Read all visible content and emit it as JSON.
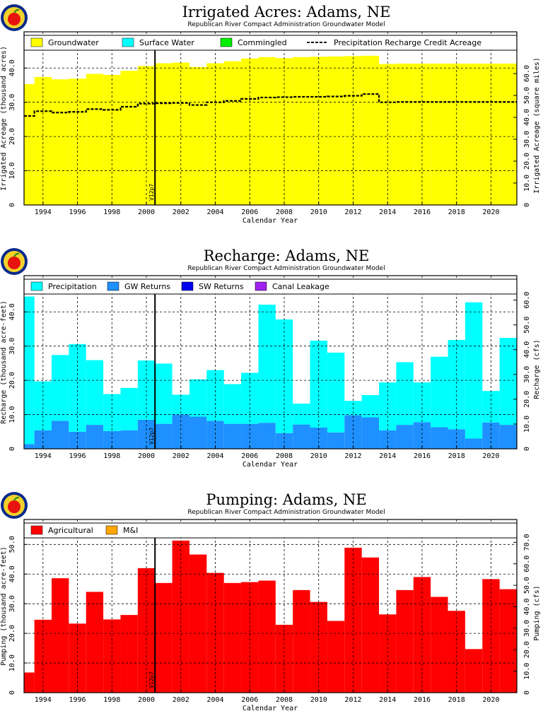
{
  "chart_data": [
    {
      "type": "area",
      "title": "Irrigated Acres: Adams, NE",
      "subtitle": "Republican River Compact Administration Groundwater Model",
      "xlabel": "Calendar Year",
      "ylabel": "Irrigated Acreage (thousand acres)",
      "y2label": "Irrigated Acreage (square miles)",
      "xlim": [
        1992.9,
        2021.5
      ],
      "ylim": [
        0,
        44.6
      ],
      "y2lim": [
        0,
        69.7
      ],
      "y2ticks": [
        "0",
        "10.0",
        "20.0",
        "30.0",
        "40.0",
        "50.0",
        "60.0"
      ],
      "grid": true,
      "legend_position": "top",
      "marker_x": 2000.5,
      "marker_label": "V12p7",
      "start_year": 1993,
      "legend": [
        {
          "name": "Groundwater",
          "color": "#ffff00",
          "style": "box"
        },
        {
          "name": "Surface Water",
          "color": "#00ffff",
          "style": "box"
        },
        {
          "name": "Commingled",
          "color": "#00ee00",
          "style": "box"
        },
        {
          "name": "Precipitation Recharge Credit Acreage",
          "color": "#000000",
          "style": "dash"
        }
      ],
      "series": [
        {
          "name": "Groundwater",
          "color": "#ffff00",
          "values": [
            35.3,
            37.4,
            36.7,
            36.9,
            38.3,
            38.0,
            39.2,
            40.6,
            41.4,
            41.6,
            40.3,
            41.4,
            42.0,
            42.8,
            43.2,
            42.9,
            43.2,
            43.3,
            43.4,
            43.5,
            43.6,
            41.2,
            41.3,
            41.3,
            41.3,
            41.3,
            41.3,
            41.3,
            41.3
          ],
          "dashed_values": [
            26.0,
            27.4,
            27.0,
            27.2,
            28.0,
            27.8,
            28.7,
            29.6,
            29.7,
            29.8,
            29.2,
            30.0,
            30.4,
            31.0,
            31.4,
            31.5,
            31.6,
            31.6,
            31.7,
            31.9,
            32.4,
            30.0,
            30.1,
            30.1,
            30.1,
            30.1,
            30.1,
            30.1,
            30.1
          ]
        }
      ]
    },
    {
      "type": "bar",
      "title": "Recharge: Adams, NE",
      "subtitle": "Republican River Compact Administration Groundwater Model",
      "xlabel": "Calendar Year",
      "ylabel": "Recharge (thousand acre-feet)",
      "y2label": "Recharge (cfs)",
      "xlim": [
        1992.9,
        2021.5
      ],
      "ylim": [
        0,
        44.6
      ],
      "y2lim": [
        0,
        61.6
      ],
      "y2ticks": [
        "0",
        "10.0",
        "20.0",
        "30.0",
        "40.0",
        "50.0",
        "60.0"
      ],
      "grid": true,
      "legend_position": "top",
      "marker_x": 2000.5,
      "marker_label": "V12p7",
      "start_year": 1993,
      "legend": [
        {
          "name": "Precipitation",
          "color": "#00ffff",
          "style": "box"
        },
        {
          "name": "GW Returns",
          "color": "#1e90ff",
          "style": "box"
        },
        {
          "name": "SW Returns",
          "color": "#0000ee",
          "style": "box"
        },
        {
          "name": "Canal Leakage",
          "color": "#a020f0",
          "style": "box"
        }
      ],
      "series": [
        {
          "name": "GW Returns",
          "color": "#1e90ff",
          "values": [
            1.4,
            5.4,
            8.2,
            5.0,
            7.0,
            5.2,
            5.4,
            8.5,
            7.3,
            10.0,
            9.4,
            8.2,
            7.3,
            7.3,
            7.6,
            4.6,
            7.1,
            6.2,
            4.8,
            9.8,
            9.2,
            5.4,
            7.0,
            7.8,
            6.3,
            5.7,
            3.0,
            7.7,
            7.0
          ]
        },
        {
          "name": "Precipitation",
          "color": "#00ffff",
          "values": [
            43.1,
            14.3,
            19.2,
            25.6,
            18.9,
            10.8,
            12.4,
            17.3,
            17.6,
            5.8,
            10.9,
            14.8,
            11.6,
            14.9,
            34.5,
            33.2,
            6.1,
            25.4,
            23.3,
            4.2,
            6.5,
            14.0,
            18.3,
            11.6,
            20.6,
            26.1,
            39.8,
            9.2,
            25.4
          ]
        }
      ]
    },
    {
      "type": "bar",
      "title": "Pumping: Adams, NE",
      "subtitle": "Republican River Compact Administration Groundwater Model",
      "xlabel": "Calendar Year",
      "ylabel": "Pumping (thousand acre-feet)",
      "y2label": "Pumping (cfs)",
      "xlim": [
        1992.9,
        2021.5
      ],
      "ylim": [
        0,
        51.5
      ],
      "y2lim": [
        0,
        71.1
      ],
      "y2ticks": [
        "0",
        "10.0",
        "20.0",
        "30.0",
        "40.0",
        "50.0",
        "60.0",
        "70.0"
      ],
      "grid": true,
      "legend_position": "top",
      "marker_x": 2000.5,
      "marker_label": "V12p7",
      "start_year": 1993,
      "legend": [
        {
          "name": "Agricultural",
          "color": "#ff0000",
          "style": "box"
        },
        {
          "name": "M&I",
          "color": "#ffa500",
          "style": "box"
        }
      ],
      "series": [
        {
          "name": "Agricultural",
          "color": "#ff0000",
          "values": [
            6.8,
            24.6,
            38.6,
            23.3,
            34.0,
            24.7,
            26.2,
            42.0,
            37.0,
            51.3,
            46.6,
            40.4,
            37.0,
            37.3,
            37.8,
            22.9,
            34.6,
            30.6,
            24.2,
            48.9,
            45.6,
            26.4,
            34.6,
            39.0,
            32.3,
            27.6,
            14.7,
            38.3,
            34.9
          ]
        }
      ]
    }
  ],
  "years": [
    "1994",
    "1996",
    "1998",
    "2000",
    "2002",
    "2004",
    "2006",
    "2008",
    "2010",
    "2012",
    "2014",
    "2016",
    "2018",
    "2020"
  ]
}
